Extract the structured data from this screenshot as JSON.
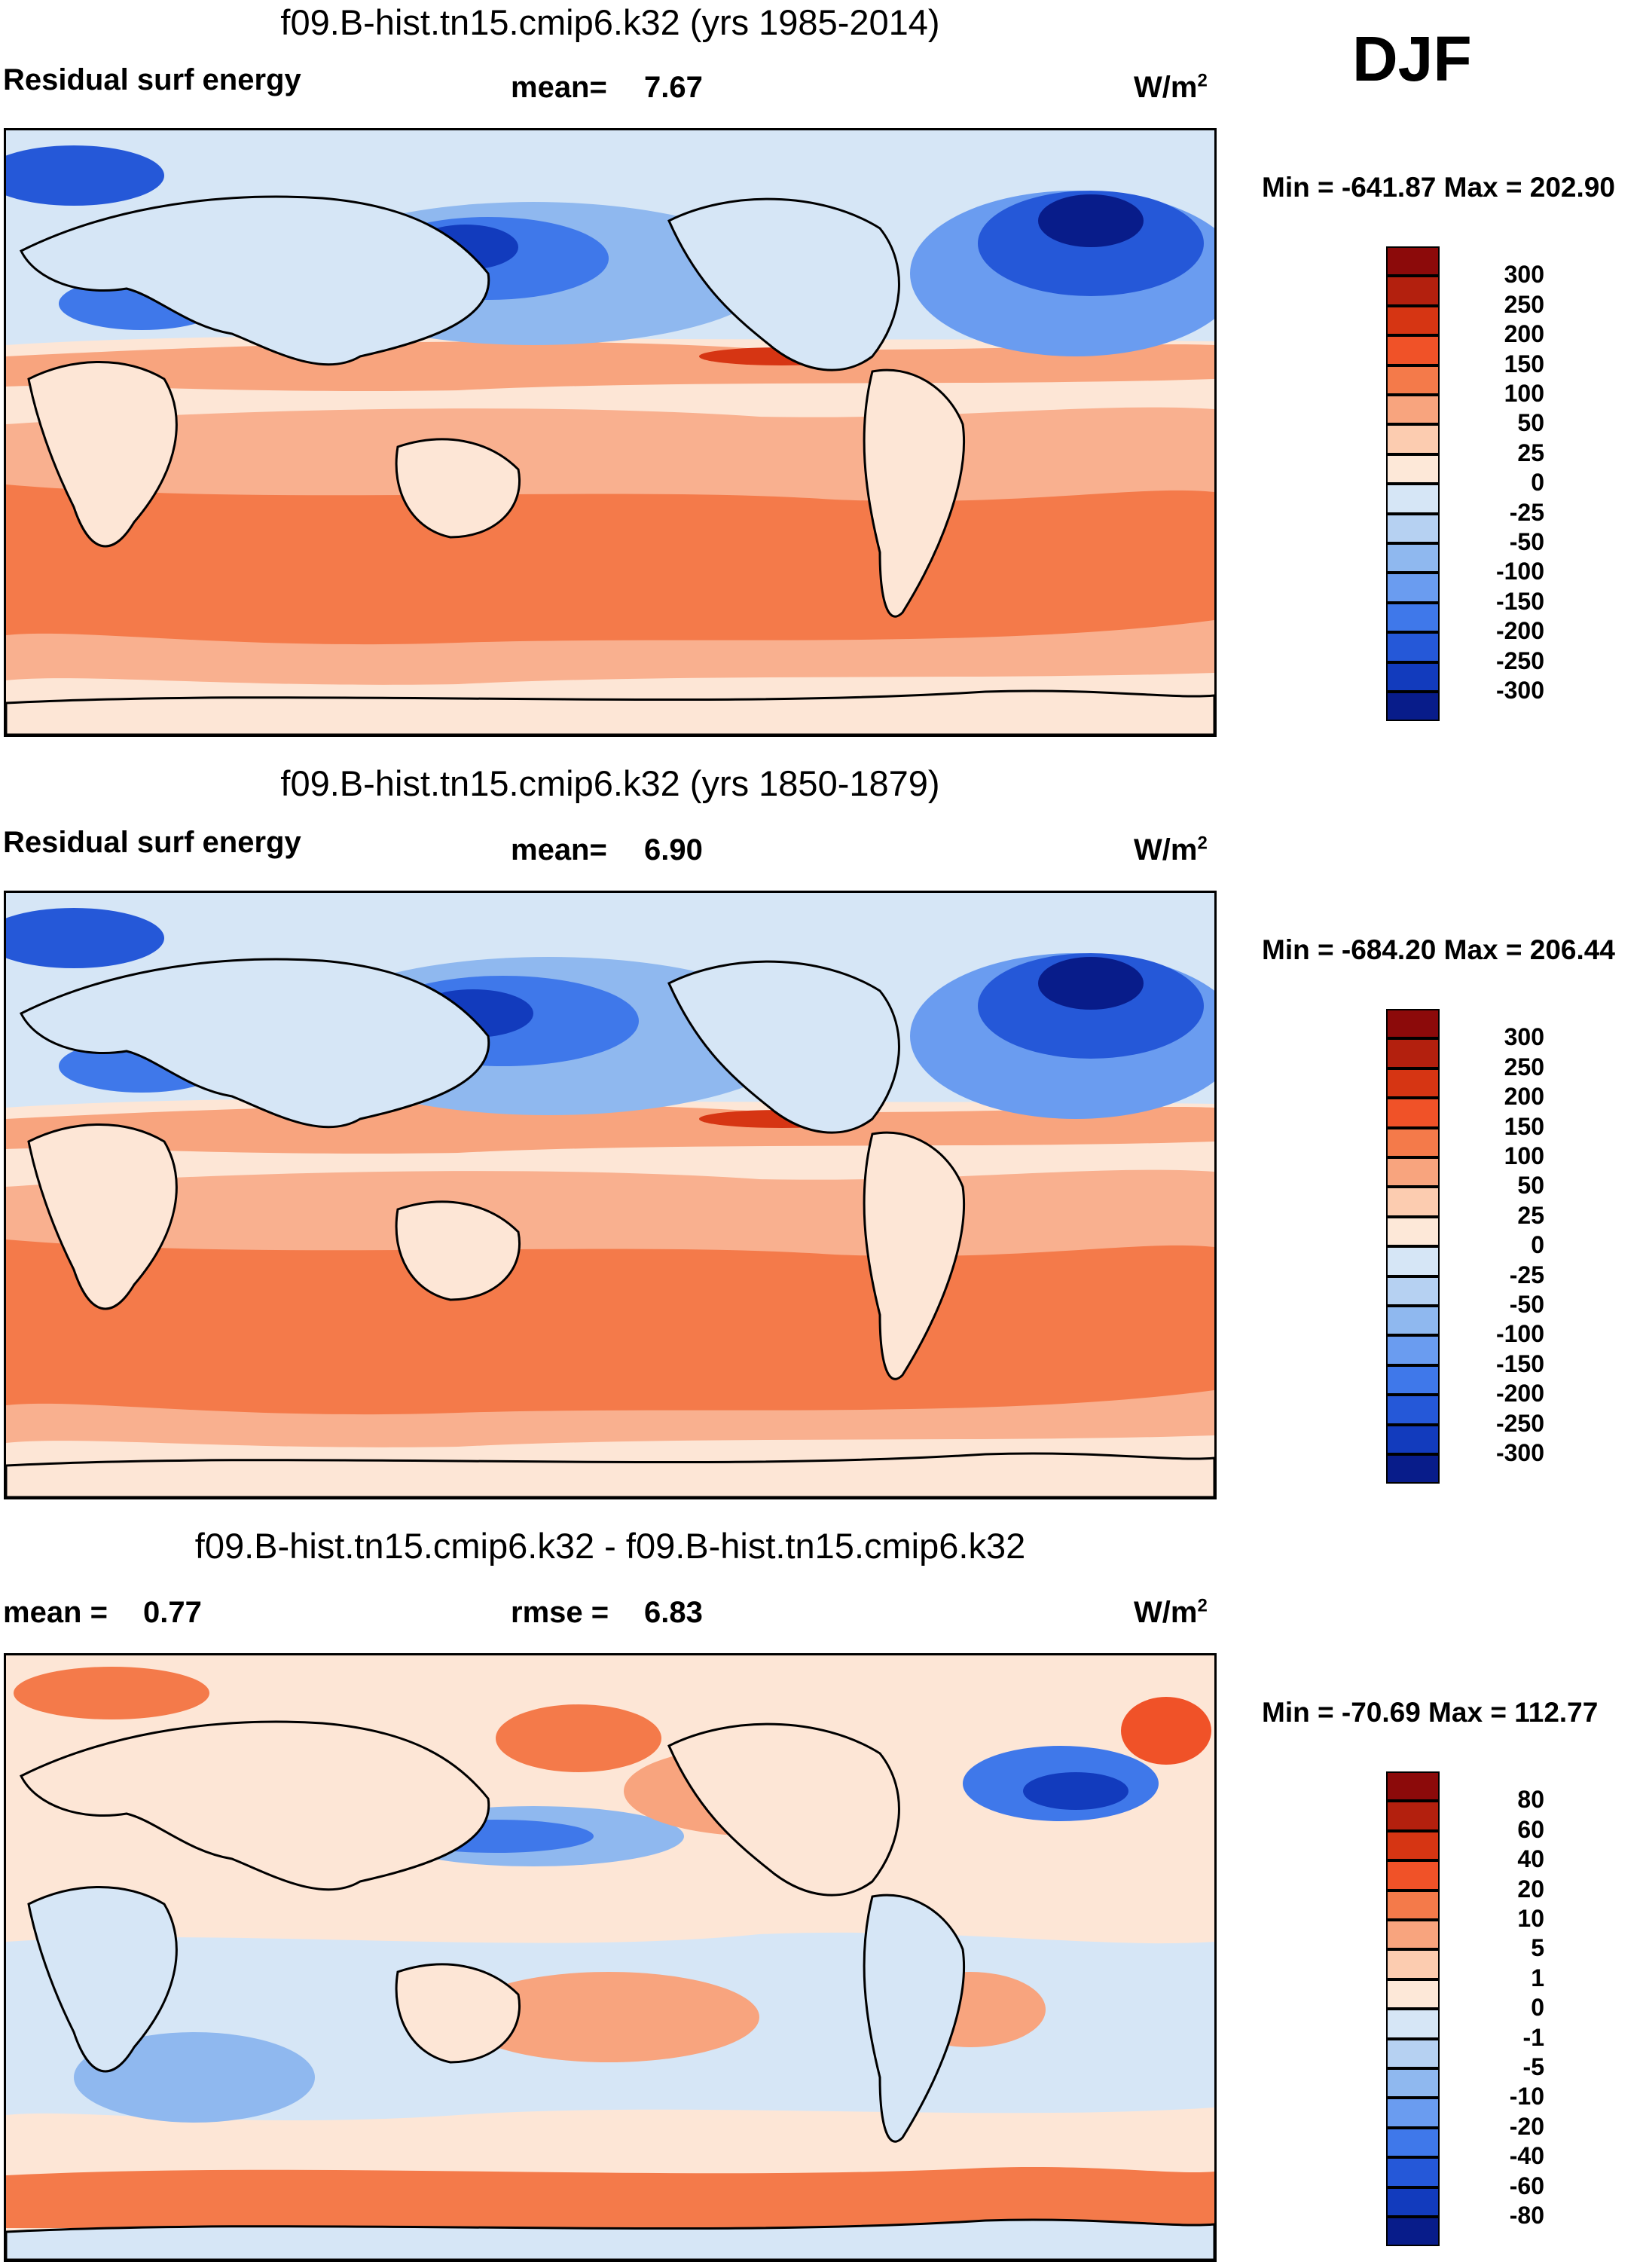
{
  "season": "DJF",
  "panels": [
    {
      "title": "f09.B-hist.tn15.cmip6.k32 (yrs 1985-2014)",
      "left_label": "Residual surf energy",
      "center_label": "mean=",
      "center_value": "7.67",
      "units": "W/m",
      "units_sup": "2",
      "minmax": "Min = -641.87 Max = 202.90",
      "legend_labels": [
        "300",
        "250",
        "200",
        "150",
        "100",
        "50",
        "25",
        "0",
        "-25",
        "-50",
        "-100",
        "-150",
        "-200",
        "-250",
        "-300"
      ],
      "legend_colors": [
        "#8c0a0a",
        "#b3200e",
        "#d63513",
        "#f05228",
        "#f47a4a",
        "#f8a47e",
        "#fcccb0",
        "#fde8d8",
        "#d6e6f6",
        "#b6d1f2",
        "#8fb8ef",
        "#6a9cf0",
        "#3f78ea",
        "#2558d8",
        "#123bbd",
        "#081c8a"
      ]
    },
    {
      "title": "f09.B-hist.tn15.cmip6.k32 (yrs 1850-1879)",
      "left_label": "Residual surf energy",
      "center_label": "mean=",
      "center_value": "6.90",
      "units": "W/m",
      "units_sup": "2",
      "minmax": "Min = -684.20 Max = 206.44",
      "legend_labels": [
        "300",
        "250",
        "200",
        "150",
        "100",
        "50",
        "25",
        "0",
        "-25",
        "-50",
        "-100",
        "-150",
        "-200",
        "-250",
        "-300"
      ],
      "legend_colors": [
        "#8c0a0a",
        "#b3200e",
        "#d63513",
        "#f05228",
        "#f47a4a",
        "#f8a47e",
        "#fcccb0",
        "#fde8d8",
        "#d6e6f6",
        "#b6d1f2",
        "#8fb8ef",
        "#6a9cf0",
        "#3f78ea",
        "#2558d8",
        "#123bbd",
        "#081c8a"
      ]
    },
    {
      "title": "f09.B-hist.tn15.cmip6.k32 - f09.B-hist.tn15.cmip6.k32",
      "left_label": "mean =",
      "left_value": "0.77",
      "center_label": "rmse =",
      "center_value": "6.83",
      "units": "W/m",
      "units_sup": "2",
      "minmax": "Min = -70.69 Max = 112.77",
      "legend_labels": [
        "80",
        "60",
        "40",
        "20",
        "10",
        "5",
        "1",
        "0",
        "-1",
        "-5",
        "-10",
        "-20",
        "-40",
        "-60",
        "-80"
      ],
      "legend_colors": [
        "#8c0a0a",
        "#b3200e",
        "#d63513",
        "#f05228",
        "#f47a4a",
        "#f8a47e",
        "#fcccb0",
        "#fde8d8",
        "#d6e6f6",
        "#b6d1f2",
        "#8fb8ef",
        "#6a9cf0",
        "#3f78ea",
        "#2558d8",
        "#123bbd",
        "#081c8a"
      ]
    }
  ]
}
